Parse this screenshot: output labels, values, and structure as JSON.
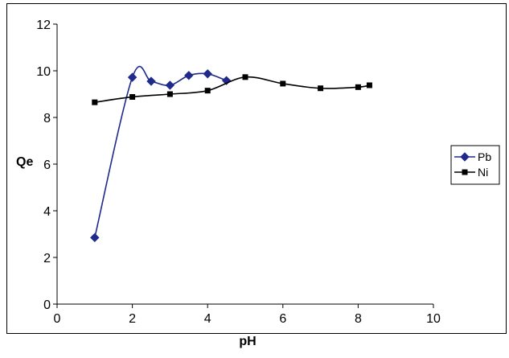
{
  "chart_data": {
    "type": "scatter",
    "title": "",
    "xlabel": "pH",
    "ylabel": "Qe",
    "xlim": [
      0,
      10
    ],
    "ylim": [
      0,
      12
    ],
    "xticks": [
      0,
      2,
      4,
      6,
      8,
      10
    ],
    "yticks": [
      0,
      2,
      4,
      6,
      8,
      10,
      12
    ],
    "grid": false,
    "legend_position": "right",
    "series": [
      {
        "name": "Pb",
        "color": "#1f2a8c",
        "marker": "diamond",
        "x": [
          1,
          2,
          2.5,
          3,
          3.5,
          4,
          4.5
        ],
        "y": [
          2.85,
          9.72,
          9.55,
          9.38,
          9.8,
          9.87,
          9.58
        ]
      },
      {
        "name": "Ni",
        "color": "#000000",
        "marker": "square",
        "x": [
          1,
          2,
          3,
          4,
          5,
          6,
          7,
          8,
          8.3
        ],
        "y": [
          8.65,
          8.88,
          9.0,
          9.15,
          9.73,
          9.45,
          9.25,
          9.3,
          9.38
        ]
      }
    ]
  }
}
